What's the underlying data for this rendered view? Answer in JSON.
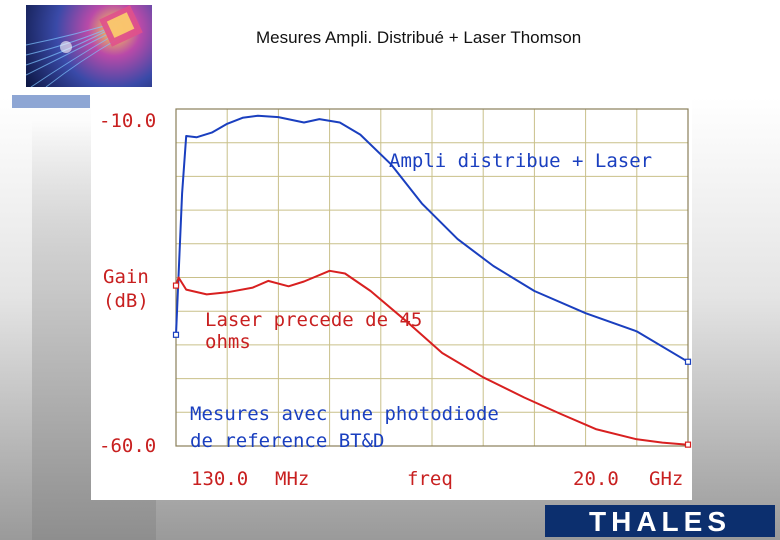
{
  "page": {
    "title": "Mesures Ampli. Distribué + Laser Thomson"
  },
  "brand": {
    "name": "THALES",
    "color": "#0c2f6e"
  },
  "chart_data": {
    "type": "line",
    "grid": true,
    "x_start_label": "130.0 MHz",
    "x_end_label": "20.0 GHz",
    "x_tick_labels": [
      "130.0",
      "MHz",
      "freq",
      "20.0",
      "GHz"
    ],
    "y_tick_labels": [
      "-10.0",
      "-60.0"
    ],
    "ylabel_lines": [
      "Gain",
      "(dB)"
    ],
    "ylim": [
      -60,
      -10
    ],
    "x_divisions": 10,
    "y_divisions": 10,
    "annotations": {
      "blue_label": "Ampli distribue + Laser",
      "red_label_lines": [
        "Laser precede de 45",
        "ohms"
      ],
      "note_lines": [
        "Mesures avec une photodiode",
        "de reference BT&D"
      ]
    },
    "series": [
      {
        "color": "#1a3fbf",
        "x": [
          0,
          0.012,
          0.02,
          0.04,
          0.07,
          0.1,
          0.13,
          0.16,
          0.2,
          0.25,
          0.28,
          0.32,
          0.36,
          0.42,
          0.48,
          0.55,
          0.62,
          0.7,
          0.8,
          0.9,
          1.0
        ],
        "y": [
          -43.5,
          -22.5,
          -14,
          -14.2,
          -13.5,
          -12.2,
          -11.3,
          -11.0,
          -11.2,
          -12.0,
          -11.5,
          -12.0,
          -13.8,
          -18.2,
          -24.0,
          -29.3,
          -33.3,
          -37.0,
          -40.3,
          -43.0,
          -47.5
        ]
      },
      {
        "color": "#d82020",
        "x": [
          0,
          0.005,
          0.02,
          0.06,
          0.1,
          0.15,
          0.18,
          0.22,
          0.25,
          0.3,
          0.33,
          0.38,
          0.45,
          0.52,
          0.6,
          0.68,
          0.75,
          0.82,
          0.9,
          0.95,
          1.0
        ],
        "y": [
          -36.2,
          -35.0,
          -36.8,
          -37.5,
          -37.2,
          -36.5,
          -35.5,
          -36.3,
          -35.6,
          -34.0,
          -34.4,
          -37.0,
          -41.5,
          -46.2,
          -49.8,
          -52.8,
          -55.2,
          -57.5,
          -59.0,
          -59.5,
          -59.8
        ]
      }
    ]
  }
}
